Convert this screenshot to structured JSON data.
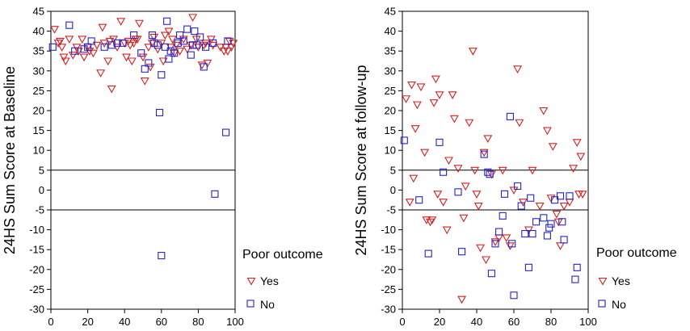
{
  "chart_data": [
    {
      "type": "scatter",
      "ylabel": "24HS Sum Score at Baseline",
      "xlim": [
        0,
        100
      ],
      "ylim": [
        -30,
        45
      ],
      "xticks": [
        0,
        20,
        40,
        60,
        80,
        100
      ],
      "yticks": [
        -30,
        -25,
        -20,
        -15,
        -10,
        -5,
        0,
        5,
        10,
        15,
        20,
        25,
        30,
        35,
        40,
        45
      ],
      "reference_lines_y": [
        5,
        -5
      ],
      "colors": {
        "Yes": "#d42020",
        "No": "#2424c8"
      },
      "series": [
        {
          "name": "Yes",
          "marker": "triangle-down",
          "points": [
            [
              2,
              40.5
            ],
            [
              4,
              37
            ],
            [
              5,
              37.5
            ],
            [
              6,
              36
            ],
            [
              7,
              33.5
            ],
            [
              8,
              32.5
            ],
            [
              10,
              38
            ],
            [
              12,
              34
            ],
            [
              14,
              36
            ],
            [
              15,
              35
            ],
            [
              17,
              38
            ],
            [
              18,
              33.5
            ],
            [
              20,
              36
            ],
            [
              21,
              35
            ],
            [
              23,
              34.5
            ],
            [
              25,
              36.5
            ],
            [
              27,
              29.5
            ],
            [
              28,
              41
            ],
            [
              29,
              37
            ],
            [
              31,
              32.5
            ],
            [
              32,
              37.5
            ],
            [
              33,
              25.5
            ],
            [
              34,
              38
            ],
            [
              36,
              36
            ],
            [
              38,
              42.5
            ],
            [
              40,
              37
            ],
            [
              41,
              33.5
            ],
            [
              42,
              37.5
            ],
            [
              43,
              36.5
            ],
            [
              44,
              32.5
            ],
            [
              45,
              37
            ],
            [
              46,
              38
            ],
            [
              47,
              38
            ],
            [
              48,
              42
            ],
            [
              50,
              33.5
            ],
            [
              51,
              27.5
            ],
            [
              53,
              36
            ],
            [
              54,
              31
            ],
            [
              55,
              37
            ],
            [
              56,
              38.5
            ],
            [
              58,
              35.5
            ],
            [
              60,
              37
            ],
            [
              61,
              32.5
            ],
            [
              62,
              39
            ],
            [
              64,
              40
            ],
            [
              65,
              36
            ],
            [
              66,
              38
            ],
            [
              67,
              34.5
            ],
            [
              68,
              36.5
            ],
            [
              70,
              35
            ],
            [
              72,
              38
            ],
            [
              74,
              35.5
            ],
            [
              76,
              36.5
            ],
            [
              77,
              43.5
            ],
            [
              79,
              38
            ],
            [
              80,
              36
            ],
            [
              82,
              31.5
            ],
            [
              83,
              36.5
            ],
            [
              84,
              37
            ],
            [
              85,
              32
            ],
            [
              87,
              38
            ],
            [
              88,
              36.5
            ],
            [
              92,
              36
            ],
            [
              94,
              35
            ],
            [
              95,
              36
            ],
            [
              96,
              35
            ],
            [
              97,
              37.5
            ],
            [
              98,
              36
            ],
            [
              99,
              37
            ]
          ]
        },
        {
          "name": "No",
          "marker": "square",
          "points": [
            [
              1,
              36
            ],
            [
              10,
              41.5
            ],
            [
              13,
              35
            ],
            [
              18,
              35.5
            ],
            [
              20,
              36
            ],
            [
              22,
              37.5
            ],
            [
              29,
              36
            ],
            [
              33,
              36.5
            ],
            [
              36,
              37
            ],
            [
              39,
              37
            ],
            [
              45,
              39
            ],
            [
              49,
              34.5
            ],
            [
              51,
              30.5
            ],
            [
              53,
              32
            ],
            [
              55,
              39
            ],
            [
              56,
              37
            ],
            [
              58,
              36.5
            ],
            [
              59,
              19.5
            ],
            [
              60,
              29
            ],
            [
              62,
              36
            ],
            [
              63,
              42.5
            ],
            [
              64,
              33
            ],
            [
              65,
              35
            ],
            [
              67,
              34.5
            ],
            [
              69,
              37
            ],
            [
              70,
              39
            ],
            [
              72,
              37.5
            ],
            [
              74,
              40.5
            ],
            [
              76,
              34
            ],
            [
              77,
              36.5
            ],
            [
              78,
              40
            ],
            [
              79,
              36.5
            ],
            [
              81,
              38.5
            ],
            [
              83,
              31
            ],
            [
              84,
              36
            ],
            [
              88,
              37
            ],
            [
              89,
              -1
            ],
            [
              95,
              14.5
            ],
            [
              96,
              37.5
            ],
            [
              60,
              -16.5
            ]
          ]
        }
      ]
    },
    {
      "type": "scatter",
      "ylabel": "24HS Sum Score at follow-up",
      "xlim": [
        0,
        100
      ],
      "ylim": [
        -30,
        45
      ],
      "xticks": [
        0,
        20,
        40,
        60,
        80,
        100
      ],
      "yticks": [
        -30,
        -25,
        -20,
        -15,
        -10,
        -5,
        0,
        5,
        10,
        15,
        20,
        25,
        30,
        35,
        40,
        45
      ],
      "reference_lines_y": [
        5,
        -5
      ],
      "legend": {
        "title": "Poor outcome",
        "entries": [
          "Yes",
          "No"
        ],
        "placement": "bottom-right outside"
      },
      "colors": {
        "Yes": "#d42020",
        "No": "#2424c8"
      },
      "series": [
        {
          "name": "Yes",
          "marker": "triangle-down",
          "points": [
            [
              2,
              23
            ],
            [
              4,
              -3
            ],
            [
              5,
              26.5
            ],
            [
              6,
              3
            ],
            [
              7,
              15.5
            ],
            [
              8,
              21.5
            ],
            [
              10,
              26
            ],
            [
              12,
              9.5
            ],
            [
              13,
              -7.5
            ],
            [
              15,
              -8
            ],
            [
              16,
              -7.5
            ],
            [
              17,
              22
            ],
            [
              18,
              28
            ],
            [
              19,
              -1
            ],
            [
              20,
              24
            ],
            [
              22,
              -3
            ],
            [
              24,
              -10
            ],
            [
              25,
              7.5
            ],
            [
              27,
              24
            ],
            [
              28,
              18
            ],
            [
              30,
              5.5
            ],
            [
              32,
              -27.5
            ],
            [
              33,
              -7
            ],
            [
              34,
              1
            ],
            [
              36,
              17
            ],
            [
              38,
              35
            ],
            [
              39,
              5
            ],
            [
              40,
              -1
            ],
            [
              41,
              -4
            ],
            [
              42,
              -14.5
            ],
            [
              44,
              9.5
            ],
            [
              45,
              -17.5
            ],
            [
              46,
              13
            ],
            [
              48,
              4
            ],
            [
              50,
              -13
            ],
            [
              52,
              -12
            ],
            [
              54,
              5
            ],
            [
              56,
              -12
            ],
            [
              58,
              -14
            ],
            [
              60,
              0
            ],
            [
              62,
              30.5
            ],
            [
              63,
              17
            ],
            [
              65,
              -3
            ],
            [
              68,
              -10
            ],
            [
              70,
              5
            ],
            [
              74,
              -4
            ],
            [
              76,
              20
            ],
            [
              78,
              15
            ],
            [
              80,
              -2
            ],
            [
              81,
              11
            ],
            [
              83,
              -6
            ],
            [
              84,
              -8
            ],
            [
              85,
              -14
            ],
            [
              87,
              -4
            ],
            [
              90,
              -3
            ],
            [
              92,
              5.5
            ],
            [
              94,
              12
            ],
            [
              95,
              -1
            ],
            [
              96,
              8.5
            ],
            [
              97,
              -1
            ]
          ]
        },
        {
          "name": "No",
          "marker": "square",
          "points": [
            [
              1,
              12.5
            ],
            [
              9,
              -2.5
            ],
            [
              14,
              -16
            ],
            [
              20,
              12
            ],
            [
              22,
              4.5
            ],
            [
              30,
              -0.5
            ],
            [
              32,
              -15.5
            ],
            [
              44,
              9
            ],
            [
              46,
              4.5
            ],
            [
              47,
              4
            ],
            [
              48,
              -21
            ],
            [
              50,
              -13.5
            ],
            [
              52,
              -10.5
            ],
            [
              54,
              -6.5
            ],
            [
              55,
              -1
            ],
            [
              58,
              18.5
            ],
            [
              59,
              -13.5
            ],
            [
              60,
              -26.5
            ],
            [
              62,
              1
            ],
            [
              64,
              -4
            ],
            [
              66,
              -11
            ],
            [
              68,
              -19.5
            ],
            [
              69,
              -2
            ],
            [
              70,
              -11
            ],
            [
              72,
              -8
            ],
            [
              76,
              -7
            ],
            [
              78,
              -11.5
            ],
            [
              79,
              -9.5
            ],
            [
              80,
              -8.5
            ],
            [
              82,
              -2.5
            ],
            [
              85,
              -1.5
            ],
            [
              86,
              -8
            ],
            [
              87,
              -12.5
            ],
            [
              90,
              -1.5
            ],
            [
              93,
              -22.5
            ],
            [
              94,
              -19.5
            ]
          ]
        }
      ]
    }
  ]
}
